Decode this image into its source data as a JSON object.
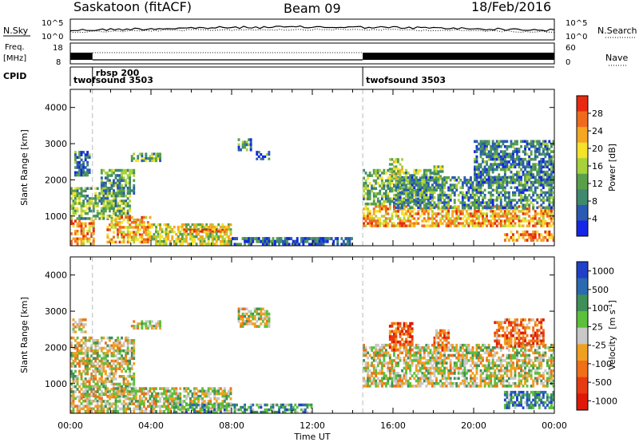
{
  "header": {
    "title": "Saskatoon (fitACF)",
    "beam": "Beam 09",
    "date": "18/Feb/2016"
  },
  "noise_panel": {
    "left_label": "N.Sky",
    "right_label": "N.Search",
    "left_ticks": [
      "10^5",
      "10^0"
    ],
    "right_ticks": [
      "10^5",
      "10^0"
    ]
  },
  "freq_panel": {
    "left_label_1": "Freq.",
    "left_label_2": "[MHz]",
    "right_label": "Nave",
    "left_ticks": [
      "18",
      "8"
    ],
    "right_ticks": [
      "60",
      "0"
    ]
  },
  "cpid": {
    "label": "CPID",
    "segments": [
      {
        "name": "twofsound 3503",
        "start_hour": 0.0,
        "end_hour": 1.1
      },
      {
        "name": "rbsp 200",
        "start_hour": 1.1,
        "end_hour": 14.5
      },
      {
        "name": "twofsound 3503",
        "start_hour": 14.5,
        "end_hour": 24.0
      }
    ]
  },
  "chart_data": [
    {
      "type": "heatmap",
      "name": "power",
      "ylabel": "Slant Range [km]",
      "xlabel": "",
      "x_range_hours": [
        0,
        24
      ],
      "ylim": [
        180,
        4500
      ],
      "y_ticks": [
        1000,
        2000,
        3000,
        4000
      ],
      "x_ticks": [
        0,
        4,
        8,
        12,
        16,
        20,
        24
      ],
      "colorbar": {
        "label": "Power [dB]",
        "range": [
          0,
          32
        ],
        "ticks": [
          "4",
          "8",
          "12",
          "16",
          "20",
          "24",
          "28"
        ],
        "colors": [
          "#1426e6",
          "#2a5ab4",
          "#3f8a6e",
          "#5aa04a",
          "#a8d23c",
          "#f5e22a",
          "#f5a623",
          "#f06a1e",
          "#e82a10"
        ]
      },
      "echo_regions": [
        {
          "t0": 0.0,
          "t1": 1.2,
          "r0": 200,
          "r1": 900,
          "level": 0.75
        },
        {
          "t0": 0.2,
          "t1": 1.0,
          "r0": 2100,
          "r1": 2800,
          "level": 0.25
        },
        {
          "t0": 0.0,
          "t1": 3.0,
          "r0": 900,
          "r1": 1800,
          "level": 0.4
        },
        {
          "t0": 1.5,
          "t1": 3.2,
          "r0": 1600,
          "r1": 2300,
          "level": 0.35
        },
        {
          "t0": 1.8,
          "t1": 4.0,
          "r0": 250,
          "r1": 1000,
          "level": 0.7
        },
        {
          "t0": 3.0,
          "t1": 4.5,
          "r0": 2500,
          "r1": 2750,
          "level": 0.4
        },
        {
          "t0": 4.0,
          "t1": 8.0,
          "r0": 200,
          "r1": 800,
          "level": 0.55
        },
        {
          "t0": 5.5,
          "t1": 7.8,
          "r0": 550,
          "r1": 650,
          "level": 0.85
        },
        {
          "t0": 8.0,
          "t1": 14.0,
          "r0": 180,
          "r1": 420,
          "level": 0.2
        },
        {
          "t0": 8.3,
          "t1": 9.0,
          "r0": 2800,
          "r1": 3150,
          "level": 0.3
        },
        {
          "t0": 9.2,
          "t1": 9.9,
          "r0": 2550,
          "r1": 2800,
          "level": 0.25
        },
        {
          "t0": 14.5,
          "t1": 18.0,
          "r0": 1300,
          "r1": 2300,
          "level": 0.4
        },
        {
          "t0": 14.5,
          "t1": 24.0,
          "r0": 700,
          "r1": 1300,
          "level": 0.72
        },
        {
          "t0": 16.0,
          "t1": 24.0,
          "r0": 1200,
          "r1": 2100,
          "level": 0.3
        },
        {
          "t0": 15.8,
          "t1": 16.5,
          "r0": 2000,
          "r1": 2600,
          "level": 0.5
        },
        {
          "t0": 18.0,
          "t1": 18.5,
          "r0": 2000,
          "r1": 2400,
          "level": 0.45
        },
        {
          "t0": 20.0,
          "t1": 24.0,
          "r0": 1900,
          "r1": 3100,
          "level": 0.25
        },
        {
          "t0": 21.5,
          "t1": 24.0,
          "r0": 300,
          "r1": 600,
          "level": 0.8
        }
      ]
    },
    {
      "type": "heatmap",
      "name": "velocity",
      "ylabel": "Slant Range [km]",
      "xlabel": "Time UT",
      "x_range_hours": [
        0,
        24
      ],
      "ylim": [
        180,
        4500
      ],
      "y_ticks": [
        1000,
        2000,
        3000,
        4000
      ],
      "x_ticks": [
        0,
        4,
        8,
        12,
        16,
        20,
        24
      ],
      "x_tick_labels": [
        "00:00",
        "04:00",
        "08:00",
        "12:00",
        "16:00",
        "20:00",
        "00:00"
      ],
      "colorbar": {
        "label": "Velocity",
        "label_units": "[m s",
        "label_exp": "-1",
        "label_close": "]",
        "ticks": [
          "1000",
          "500",
          "100",
          "25",
          "-25",
          "-100",
          "-500",
          "-1000"
        ],
        "colors": [
          "#2040c8",
          "#2a6ab0",
          "#3f8f58",
          "#5cc03a",
          "#c8c8c8",
          "#f0a020",
          "#f07018",
          "#e83a10",
          "#e01808"
        ]
      },
      "echo_regions": [
        {
          "t0": 0.0,
          "t1": 3.2,
          "r0": 600,
          "r1": 2300,
          "level": 0.5
        },
        {
          "t0": 0.0,
          "t1": 1.5,
          "r0": 200,
          "r1": 700,
          "level": 0.55
        },
        {
          "t0": 0.1,
          "t1": 0.8,
          "r0": 2400,
          "r1": 2800,
          "level": 0.62
        },
        {
          "t0": 1.5,
          "t1": 8.0,
          "r0": 200,
          "r1": 900,
          "level": 0.5
        },
        {
          "t0": 3.0,
          "t1": 4.5,
          "r0": 2500,
          "r1": 2750,
          "level": 0.5
        },
        {
          "t0": 5.0,
          "t1": 12.0,
          "r0": 180,
          "r1": 450,
          "level": 0.3
        },
        {
          "t0": 8.3,
          "t1": 9.9,
          "r0": 2550,
          "r1": 3100,
          "level": 0.5
        },
        {
          "t0": 14.5,
          "t1": 24.0,
          "r0": 900,
          "r1": 2100,
          "level": 0.5
        },
        {
          "t0": 15.8,
          "t1": 17.0,
          "r0": 1900,
          "r1": 2700,
          "level": 0.78
        },
        {
          "t0": 18.0,
          "t1": 18.8,
          "r0": 1900,
          "r1": 2500,
          "level": 0.72
        },
        {
          "t0": 21.5,
          "t1": 24.0,
          "r0": 300,
          "r1": 800,
          "level": 0.25
        },
        {
          "t0": 21.0,
          "t1": 23.5,
          "r0": 2000,
          "r1": 2800,
          "level": 0.72
        }
      ]
    }
  ]
}
